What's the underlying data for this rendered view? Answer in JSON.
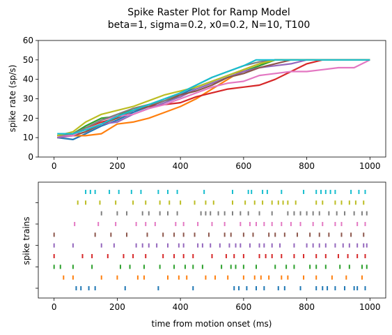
{
  "figure": {
    "title": "Spike Raster Plot for Ramp Model",
    "subtitle": "beta=1, sigma=0.2, x0=0.2, N=10, T100"
  },
  "colors": [
    "#1f77b4",
    "#ff7f0e",
    "#2ca02c",
    "#d62728",
    "#9467bd",
    "#8c564b",
    "#e377c2",
    "#7f7f7f",
    "#bcbd22",
    "#17becf"
  ],
  "chart_data": [
    {
      "type": "line",
      "title": "",
      "xlabel": "",
      "ylabel": "spike rate (sp/s)",
      "xlim": [
        -50,
        1050
      ],
      "ylim": [
        0,
        60
      ],
      "xticks": [
        0,
        200,
        400,
        600,
        800,
        1000
      ],
      "yticks": [
        0,
        10,
        20,
        30,
        40,
        50,
        60
      ],
      "series": [
        {
          "values": [
            [
              10,
              10
            ],
            [
              60,
              9
            ],
            [
              100,
              12
            ],
            [
              150,
              16
            ],
            [
              200,
              19
            ],
            [
              250,
              23
            ],
            [
              300,
              26
            ],
            [
              350,
              29
            ],
            [
              400,
              32
            ],
            [
              450,
              36
            ],
            [
              500,
              39
            ],
            [
              550,
              42
            ],
            [
              600,
              45
            ],
            [
              650,
              48
            ],
            [
              700,
              50
            ],
            [
              1000,
              50
            ]
          ]
        },
        {
          "values": [
            [
              10,
              10
            ],
            [
              60,
              11
            ],
            [
              100,
              11
            ],
            [
              150,
              12
            ],
            [
              200,
              17
            ],
            [
              250,
              18
            ],
            [
              300,
              20
            ],
            [
              350,
              23
            ],
            [
              400,
              26
            ],
            [
              450,
              30
            ],
            [
              500,
              35
            ],
            [
              550,
              40
            ],
            [
              600,
              45
            ],
            [
              650,
              48
            ],
            [
              700,
              50
            ],
            [
              1000,
              50
            ]
          ]
        },
        {
          "values": [
            [
              10,
              11
            ],
            [
              60,
              12
            ],
            [
              100,
              16
            ],
            [
              150,
              20
            ],
            [
              200,
              21
            ],
            [
              250,
              25
            ],
            [
              300,
              27
            ],
            [
              350,
              29
            ],
            [
              400,
              31
            ],
            [
              450,
              35
            ],
            [
              500,
              38
            ],
            [
              550,
              41
            ],
            [
              600,
              44
            ],
            [
              650,
              47
            ],
            [
              700,
              50
            ],
            [
              1000,
              50
            ]
          ]
        },
        {
          "values": [
            [
              10,
              11
            ],
            [
              60,
              12
            ],
            [
              100,
              15
            ],
            [
              150,
              18
            ],
            [
              200,
              20
            ],
            [
              250,
              24
            ],
            [
              300,
              26
            ],
            [
              350,
              27
            ],
            [
              400,
              28
            ],
            [
              450,
              31
            ],
            [
              500,
              33
            ],
            [
              550,
              35
            ],
            [
              600,
              36
            ],
            [
              650,
              37
            ],
            [
              700,
              40
            ],
            [
              750,
              44
            ],
            [
              800,
              48
            ],
            [
              850,
              50
            ],
            [
              1000,
              50
            ]
          ]
        },
        {
          "values": [
            [
              10,
              10
            ],
            [
              60,
              11
            ],
            [
              100,
              13
            ],
            [
              150,
              17
            ],
            [
              200,
              18
            ],
            [
              250,
              22
            ],
            [
              300,
              25
            ],
            [
              350,
              28
            ],
            [
              400,
              31
            ],
            [
              450,
              35
            ],
            [
              500,
              38
            ],
            [
              550,
              41
            ],
            [
              600,
              44
            ],
            [
              650,
              46
            ],
            [
              700,
              47
            ],
            [
              750,
              48
            ],
            [
              800,
              50
            ],
            [
              1000,
              50
            ]
          ]
        },
        {
          "values": [
            [
              10,
              11
            ],
            [
              60,
              11
            ],
            [
              100,
              13
            ],
            [
              150,
              17
            ],
            [
              200,
              20
            ],
            [
              250,
              24
            ],
            [
              300,
              26
            ],
            [
              350,
              29
            ],
            [
              400,
              32
            ],
            [
              450,
              34
            ],
            [
              500,
              37
            ],
            [
              550,
              41
            ],
            [
              600,
              43
            ],
            [
              650,
              46
            ],
            [
              700,
              48
            ],
            [
              750,
              50
            ],
            [
              1000,
              50
            ]
          ]
        },
        {
          "values": [
            [
              10,
              11
            ],
            [
              60,
              11
            ],
            [
              100,
              15
            ],
            [
              150,
              19
            ],
            [
              200,
              21
            ],
            [
              250,
              22
            ],
            [
              300,
              25
            ],
            [
              350,
              27
            ],
            [
              400,
              30
            ],
            [
              450,
              33
            ],
            [
              500,
              36
            ],
            [
              550,
              38
            ],
            [
              600,
              39
            ],
            [
              650,
              42
            ],
            [
              700,
              43
            ],
            [
              750,
              44
            ],
            [
              800,
              44
            ],
            [
              850,
              45
            ],
            [
              900,
              46
            ],
            [
              950,
              46
            ],
            [
              1000,
              50
            ]
          ]
        },
        {
          "values": [
            [
              10,
              11
            ],
            [
              60,
              12
            ],
            [
              100,
              15
            ],
            [
              150,
              19
            ],
            [
              200,
              22
            ],
            [
              250,
              25
            ],
            [
              300,
              27
            ],
            [
              350,
              29
            ],
            [
              400,
              33
            ],
            [
              450,
              37
            ],
            [
              500,
              41
            ],
            [
              550,
              44
            ],
            [
              600,
              47
            ],
            [
              650,
              49
            ],
            [
              700,
              50
            ],
            [
              1000,
              50
            ]
          ]
        },
        {
          "values": [
            [
              10,
              11
            ],
            [
              60,
              13
            ],
            [
              100,
              18
            ],
            [
              150,
              22
            ],
            [
              200,
              24
            ],
            [
              250,
              26
            ],
            [
              300,
              29
            ],
            [
              350,
              32
            ],
            [
              400,
              34
            ],
            [
              450,
              36
            ],
            [
              500,
              39
            ],
            [
              550,
              42
            ],
            [
              600,
              45
            ],
            [
              650,
              48
            ],
            [
              700,
              50
            ],
            [
              1000,
              50
            ]
          ]
        },
        {
          "values": [
            [
              10,
              12
            ],
            [
              60,
              12
            ],
            [
              100,
              14
            ],
            [
              150,
              17
            ],
            [
              200,
              21
            ],
            [
              250,
              24
            ],
            [
              300,
              27
            ],
            [
              350,
              30
            ],
            [
              400,
              33
            ],
            [
              450,
              37
            ],
            [
              500,
              41
            ],
            [
              550,
              44
            ],
            [
              600,
              47
            ],
            [
              640,
              50
            ],
            [
              1000,
              50
            ]
          ]
        }
      ]
    },
    {
      "type": "scatter",
      "subtype": "raster",
      "xlabel": "time from motion onset (ms)",
      "ylabel": "spike trains",
      "xlim": [
        -50,
        1050
      ],
      "xticks": [
        0,
        200,
        400,
        600,
        800,
        1000
      ],
      "series": [
        {
          "spikes": [
            70,
            85,
            110,
            130,
            225,
            330,
            440,
            570,
            585,
            610,
            640,
            665,
            710,
            730,
            780,
            830,
            850,
            865,
            890,
            920,
            950,
            960,
            985
          ]
        },
        {
          "spikes": [
            30,
            60,
            150,
            200,
            265,
            285,
            360,
            395,
            420,
            480,
            510,
            550,
            600,
            635,
            655,
            680,
            720,
            740,
            790,
            830,
            880,
            925,
            975
          ]
        },
        {
          "spikes": [
            0,
            20,
            60,
            120,
            210,
            240,
            285,
            335,
            380,
            415,
            440,
            470,
            530,
            560,
            575,
            600,
            640,
            700,
            735,
            760,
            810,
            830,
            860,
            905,
            935,
            975,
            990
          ]
        },
        {
          "spikes": [
            0,
            90,
            120,
            170,
            220,
            250,
            290,
            345,
            380,
            410,
            440,
            500,
            545,
            570,
            600,
            650,
            670,
            690,
            720,
            760,
            790,
            830,
            860,
            900,
            930,
            960,
            985
          ]
        },
        {
          "spikes": [
            0,
            60,
            150,
            190,
            260,
            280,
            300,
            325,
            360,
            395,
            410,
            455,
            470,
            495,
            525,
            555,
            575,
            590,
            620,
            650,
            665,
            690,
            715,
            760,
            800,
            820,
            840,
            860,
            890,
            915,
            935,
            960,
            980,
            990
          ]
        },
        {
          "spikes": [
            0,
            130,
            180,
            230,
            295,
            345,
            380,
            410,
            445,
            490,
            540,
            560,
            600,
            630,
            680,
            700,
            730,
            770,
            810,
            840,
            870,
            910,
            940,
            980
          ]
        },
        {
          "spikes": [
            65,
            140,
            195,
            260,
            290,
            320,
            385,
            410,
            455,
            500,
            540,
            590,
            620,
            640,
            665,
            690,
            720,
            750,
            780,
            820,
            850,
            890,
            910,
            960,
            985
          ]
        },
        {
          "spikes": [
            150,
            200,
            230,
            280,
            300,
            335,
            360,
            390,
            465,
            480,
            495,
            520,
            540,
            565,
            590,
            615,
            650,
            690,
            740,
            760,
            780,
            800,
            820,
            840,
            870,
            895,
            920,
            950,
            975,
            990
          ]
        },
        {
          "spikes": [
            75,
            100,
            145,
            195,
            250,
            290,
            335,
            365,
            400,
            445,
            480,
            505,
            565,
            605,
            635,
            660,
            690,
            710,
            725,
            740,
            765,
            830,
            850,
            890,
            910,
            935,
            955,
            980
          ]
        },
        {
          "spikes": [
            100,
            115,
            130,
            175,
            205,
            245,
            275,
            330,
            360,
            390,
            475,
            565,
            615,
            625,
            660,
            675,
            720,
            790,
            830,
            845,
            860,
            875,
            890,
            940,
            965,
            985
          ]
        }
      ]
    }
  ]
}
